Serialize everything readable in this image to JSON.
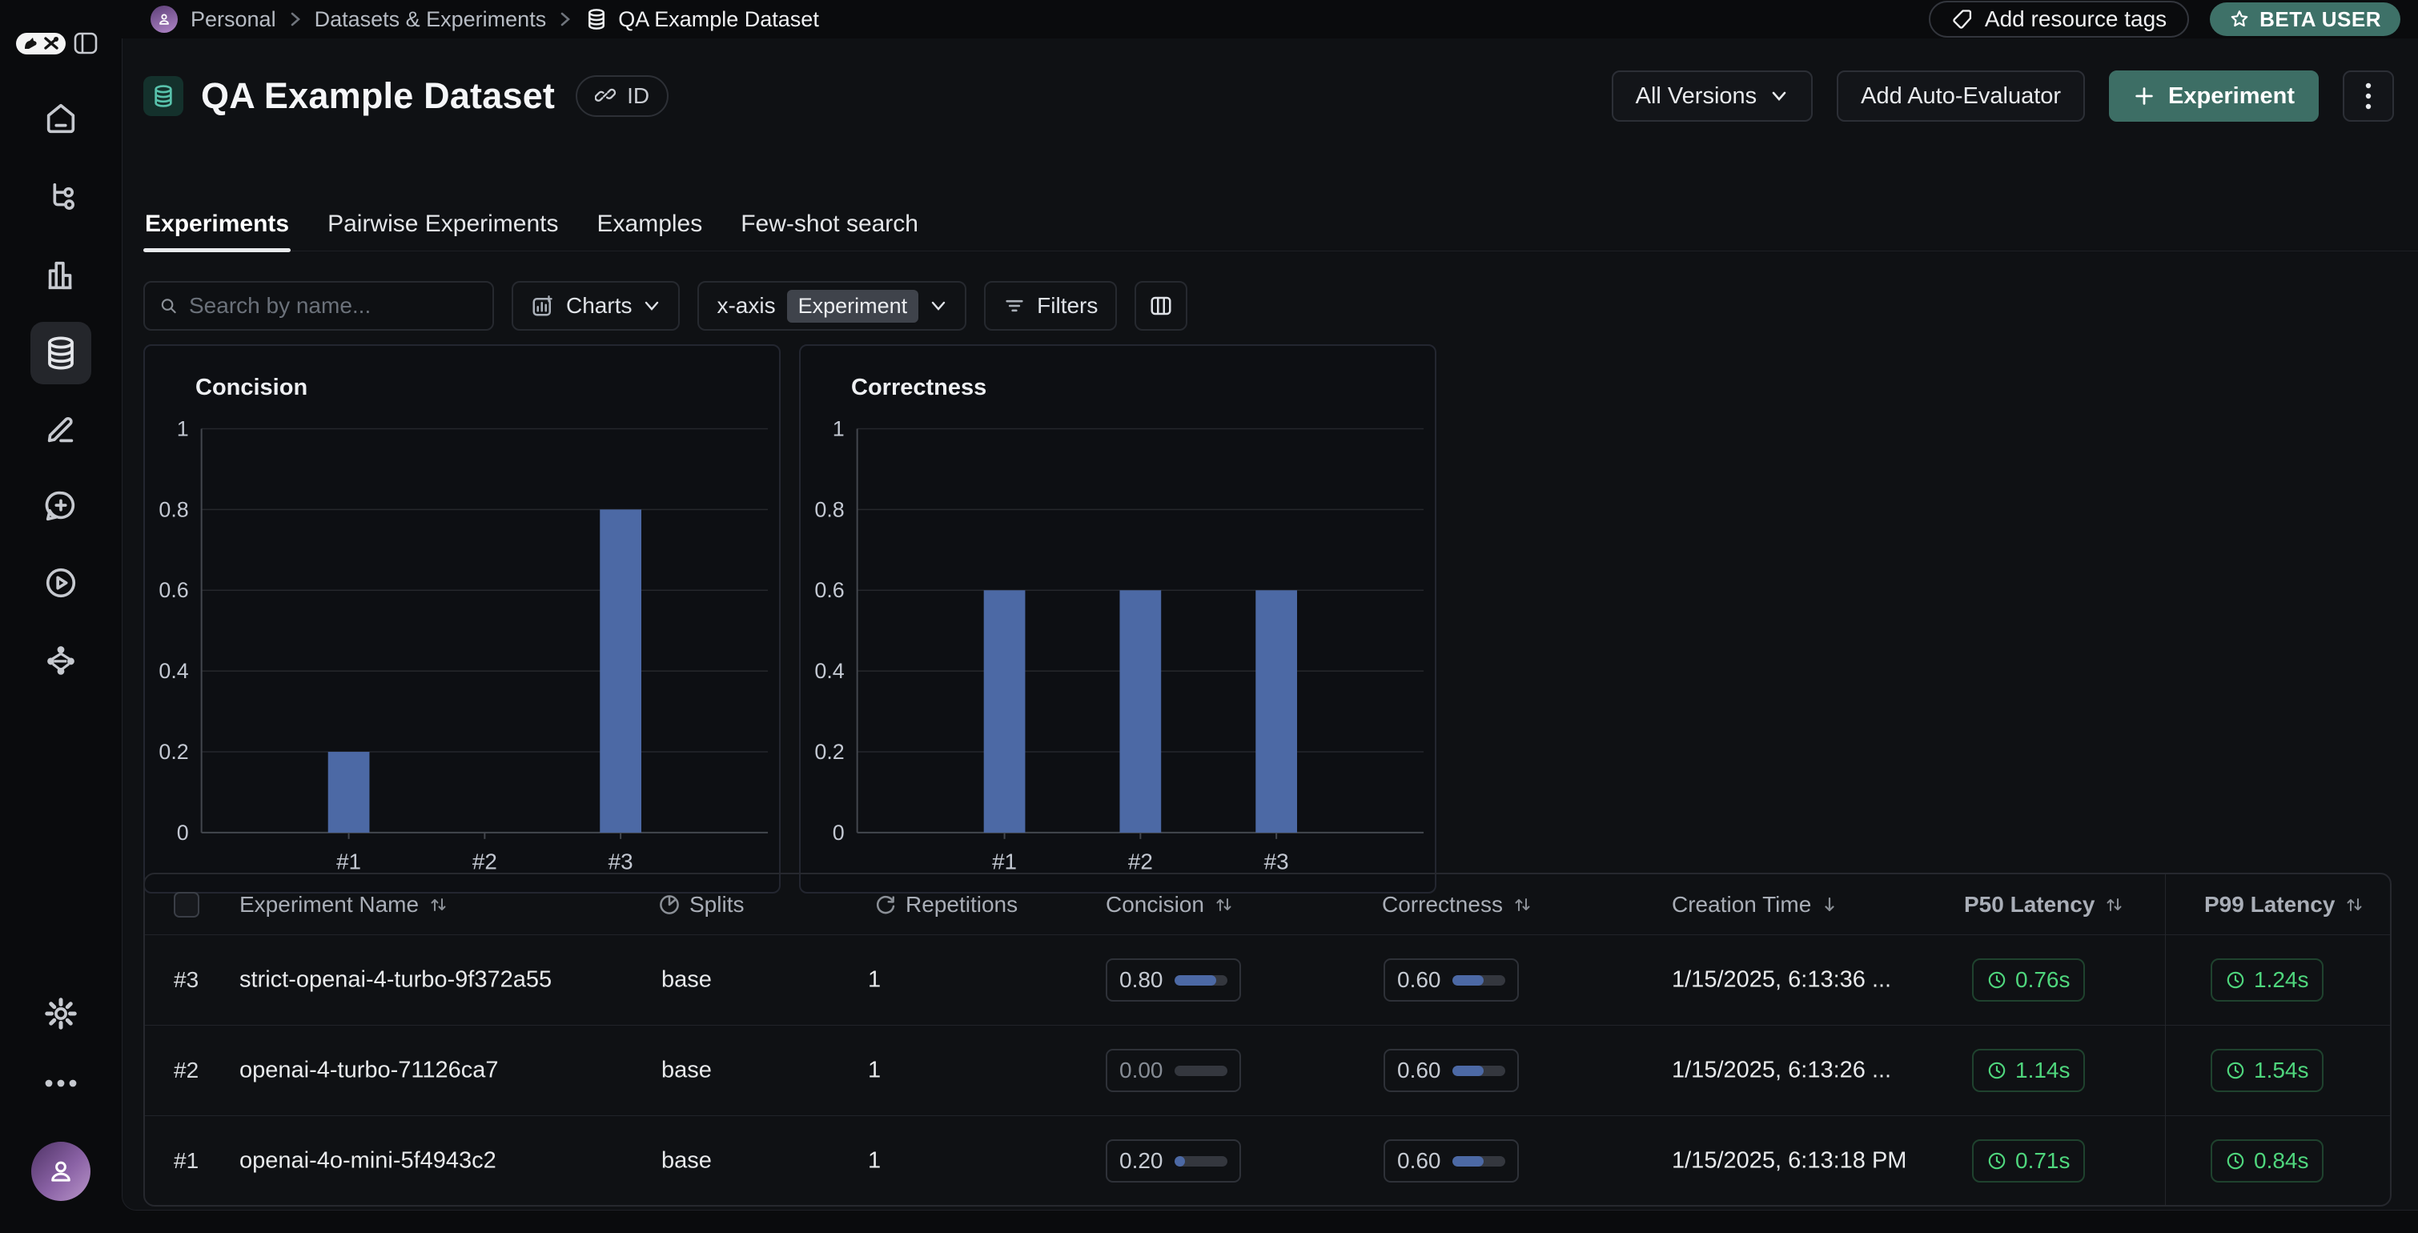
{
  "topbar": {
    "breadcrumb": {
      "workspace": "Personal",
      "section": "Datasets & Experiments",
      "current": "QA Example Dataset"
    },
    "add_resource_tags": "Add resource tags",
    "beta_badge": "BETA USER"
  },
  "header": {
    "title": "QA Example Dataset",
    "id_label": "ID",
    "all_versions": "All Versions",
    "add_auto_evaluator": "Add Auto-Evaluator",
    "experiment": "Experiment"
  },
  "tabs": [
    {
      "label": "Experiments",
      "active": true
    },
    {
      "label": "Pairwise Experiments",
      "active": false
    },
    {
      "label": "Examples",
      "active": false
    },
    {
      "label": "Few-shot search",
      "active": false
    }
  ],
  "toolbar": {
    "search_placeholder": "Search by name...",
    "charts": "Charts",
    "xaxis_label": "x-axis",
    "xaxis_value": "Experiment",
    "filters": "Filters"
  },
  "chart_data": [
    {
      "type": "bar",
      "title": "Concision",
      "categories": [
        "#1",
        "#2",
        "#3"
      ],
      "values": [
        0.2,
        0,
        0.8
      ],
      "ylim": [
        0,
        1
      ],
      "yticks": [
        0,
        0.2,
        0.4,
        0.6,
        0.8,
        1
      ],
      "grid": true,
      "bar_color": "#4c69a5",
      "xlabel": "",
      "ylabel": ""
    },
    {
      "type": "bar",
      "title": "Correctness",
      "categories": [
        "#1",
        "#2",
        "#3"
      ],
      "values": [
        0.6,
        0.6,
        0.6
      ],
      "ylim": [
        0,
        1
      ],
      "yticks": [
        0,
        0.2,
        0.4,
        0.6,
        0.8,
        1
      ],
      "grid": true,
      "bar_color": "#4c69a5",
      "xlabel": "",
      "ylabel": ""
    }
  ],
  "table": {
    "headers": {
      "name": "Experiment Name",
      "splits": "Splits",
      "repetitions": "Repetitions",
      "concision": "Concision",
      "correctness": "Correctness",
      "creation": "Creation Time",
      "p50": "P50 Latency",
      "p99": "P99 Latency"
    },
    "rows": [
      {
        "rank": "#3",
        "name": "strict-openai-4-turbo-9f372a55",
        "splits": "base",
        "repetitions": "1",
        "concision": "0.80",
        "concision_pct": 80,
        "correctness": "0.60",
        "correctness_pct": 60,
        "creation": "1/15/2025, 6:13:36 ...",
        "p50": "0.76s",
        "p99": "1.24s"
      },
      {
        "rank": "#2",
        "name": "openai-4-turbo-71126ca7",
        "splits": "base",
        "repetitions": "1",
        "concision": "0.00",
        "concision_pct": 0,
        "correctness": "0.60",
        "correctness_pct": 60,
        "creation": "1/15/2025, 6:13:26 ...",
        "p50": "1.14s",
        "p99": "1.54s"
      },
      {
        "rank": "#1",
        "name": "openai-4o-mini-5f4943c2",
        "splits": "base",
        "repetitions": "1",
        "concision": "0.20",
        "concision_pct": 20,
        "correctness": "0.60",
        "correctness_pct": 60,
        "creation": "1/15/2025, 6:13:18 PM",
        "p50": "0.71s",
        "p99": "0.84s"
      }
    ]
  },
  "icons": {
    "logo": "langsmith-logo",
    "panel": "panel-toggle-icon",
    "nav": [
      "home-icon",
      "trace-icon",
      "monitor-bars-icon",
      "database-icon",
      "pencil-icon",
      "chat-plus-icon",
      "play-circle-icon",
      "share-nodes-icon",
      "gear-icon",
      "ellipsis-icon"
    ],
    "misc": [
      "tag-icon",
      "star-icon",
      "link-icon",
      "chevron-down-icon",
      "plus-icon",
      "kebab-icon",
      "search-icon",
      "chart-icon",
      "filter-icon",
      "columns-icon",
      "sort-icon",
      "arrow-down-icon",
      "pie-icon",
      "repeat-icon",
      "clock-icon",
      "person-icon",
      "chevron-right-icon"
    ]
  },
  "colors": {
    "accent_teal": "#3d6e65",
    "badge_teal": "#3e7168",
    "bar_blue": "#4c69a5",
    "latency_green": "#4fd67d",
    "panel_bg": "#0f1114",
    "page_bg": "#0a0b0d"
  }
}
